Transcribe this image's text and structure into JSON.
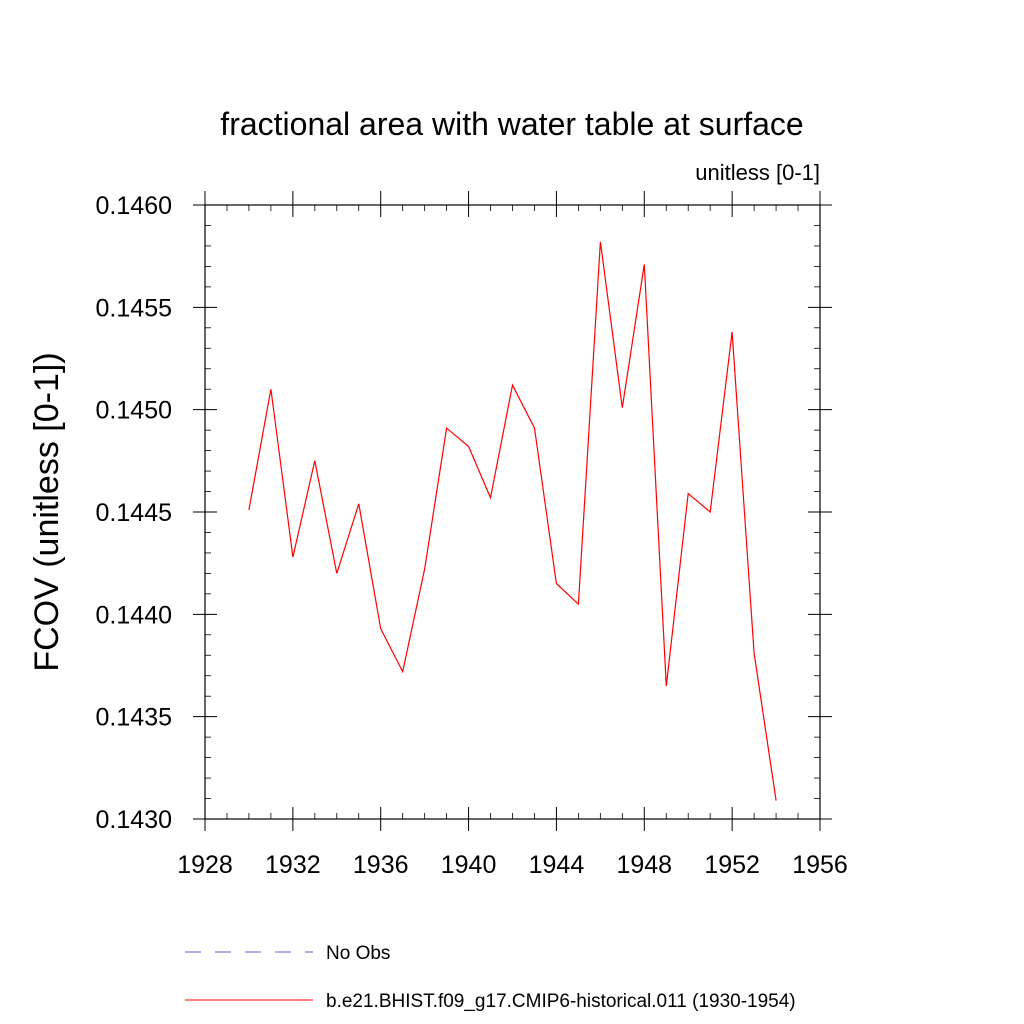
{
  "chart_data": {
    "type": "line",
    "title": "fractional area with water table at surface",
    "subtitle": "unitless [0-1]",
    "xlabel": "",
    "ylabel": "FCOV  (unitless [0-1])",
    "xlim": [
      1928,
      1956
    ],
    "ylim": [
      0.143,
      0.146
    ],
    "x_ticks": [
      1928,
      1932,
      1936,
      1940,
      1944,
      1948,
      1952,
      1956
    ],
    "x_tick_labels": [
      "1928",
      "1932",
      "1936",
      "1940",
      "1944",
      "1948",
      "1952",
      "1956"
    ],
    "y_ticks": [
      0.143,
      0.1435,
      0.144,
      0.1445,
      0.145,
      0.1455,
      0.146
    ],
    "y_tick_labels": [
      "0.1430",
      "0.1435",
      "0.1440",
      "0.1445",
      "0.1450",
      "0.1455",
      "0.1460"
    ],
    "grid": false,
    "legend_position": "bottom",
    "series": [
      {
        "name": "b.e21.BHIST.f09_g17.CMIP6-historical.011 (1930-1954)",
        "color": "#ff0000",
        "style": "solid",
        "x": [
          1930,
          1931,
          1932,
          1933,
          1934,
          1935,
          1936,
          1937,
          1938,
          1939,
          1940,
          1941,
          1942,
          1943,
          1944,
          1945,
          1946,
          1947,
          1948,
          1949,
          1950,
          1951,
          1952,
          1953,
          1954
        ],
        "y": [
          0.14451,
          0.1451,
          0.14428,
          0.14475,
          0.1442,
          0.14454,
          0.14393,
          0.14372,
          0.14422,
          0.14491,
          0.14482,
          0.14457,
          0.14512,
          0.14491,
          0.14415,
          0.14405,
          0.14582,
          0.14501,
          0.14571,
          0.14365,
          0.14459,
          0.1445,
          0.14538,
          0.14381,
          0.14309
        ]
      }
    ],
    "legend": [
      {
        "label": "No Obs",
        "color": "#6a5acd",
        "style": "dashed"
      },
      {
        "label": "b.e21.BHIST.f09_g17.CMIP6-historical.011 (1930-1954)",
        "color": "#ff0000",
        "style": "solid"
      }
    ]
  }
}
